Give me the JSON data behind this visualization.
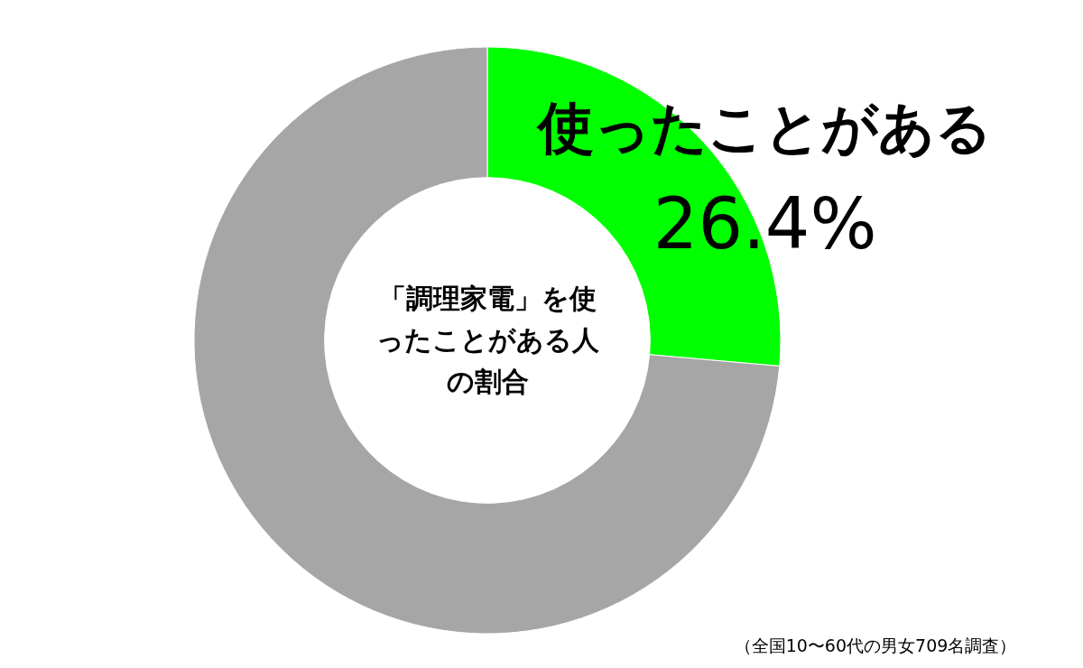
{
  "chart_data": {
    "type": "donut",
    "title": "「調理家電」を使ったことがある人の割合",
    "categories": [
      "使ったことがある",
      null
    ],
    "values": [
      26.4,
      73.6
    ],
    "colors": [
      "#00ff00",
      "#a6a6a6"
    ],
    "value_labels": [
      "26.4%",
      null
    ],
    "annotations": [
      "（全国10〜60代の男女709名調査）"
    ]
  }
}
